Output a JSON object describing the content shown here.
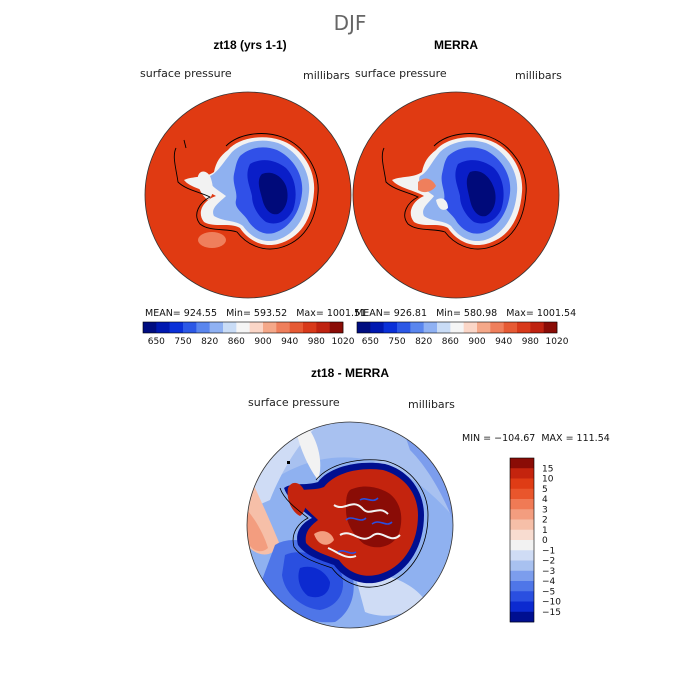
{
  "page_title": "DJF",
  "colors": {
    "ocean_red": "#e03a12",
    "ice_blue": "#0a1ec8",
    "deep_blue": "#000a7a",
    "mid_blue": "#3050e8",
    "light_blue": "#8fb1f0",
    "white": "#f4f4f4",
    "coast": "#000000"
  },
  "chart_data": [
    {
      "type": "heatmap",
      "title": "zt18 (yrs 1-1)",
      "variable": "surface pressure",
      "units": "millibars",
      "stats": "MEAN= 924.55   Min= 593.52   Max= 1001.51",
      "colorbar": {
        "ticks": [
          "650",
          "750",
          "820",
          "860",
          "900",
          "940",
          "980",
          "1020"
        ],
        "colors": [
          "#000d80",
          "#0018b0",
          "#0a30d8",
          "#2c58e6",
          "#5a86ee",
          "#8fb1f3",
          "#c9dcf6",
          "#f5f5f5",
          "#fbd6c7",
          "#f5a889",
          "#ef7f5c",
          "#e65a34",
          "#d8391a",
          "#bf2210",
          "#8a0c06"
        ]
      }
    },
    {
      "type": "heatmap",
      "title": "MERRA",
      "variable": "surface pressure",
      "units": "millibars",
      "stats": "MEAN= 926.81   Min= 580.98   Max= 1001.54",
      "colorbar": {
        "ticks": [
          "650",
          "750",
          "820",
          "860",
          "900",
          "940",
          "980",
          "1020"
        ],
        "colors": [
          "#000d80",
          "#0018b0",
          "#0a30d8",
          "#2c58e6",
          "#5a86ee",
          "#8fb1f3",
          "#c9dcf6",
          "#f5f5f5",
          "#fbd6c7",
          "#f5a889",
          "#ef7f5c",
          "#e65a34",
          "#d8391a",
          "#bf2210",
          "#8a0c06"
        ]
      }
    },
    {
      "type": "heatmap",
      "title": "zt18 - MERRA",
      "variable": "surface pressure",
      "units": "millibars",
      "stats": "MIN = −104.67  MAX = 111.54",
      "colorbar": {
        "ticks": [
          "15",
          "10",
          "5",
          "4",
          "3",
          "2",
          "1",
          "0",
          "−1",
          "−2",
          "−3",
          "−4",
          "−5",
          "−10",
          "−15"
        ],
        "colors": [
          "#8a0c06",
          "#c4240e",
          "#df3c15",
          "#e9562c",
          "#f07a55",
          "#f39d7f",
          "#f6bfa8",
          "#f8dcd0",
          "#f2f2f2",
          "#cfdcf5",
          "#a8c1f0",
          "#7c9ded",
          "#4f76e8",
          "#2a4fe0",
          "#0c2ad0",
          "#000f90"
        ]
      }
    }
  ]
}
